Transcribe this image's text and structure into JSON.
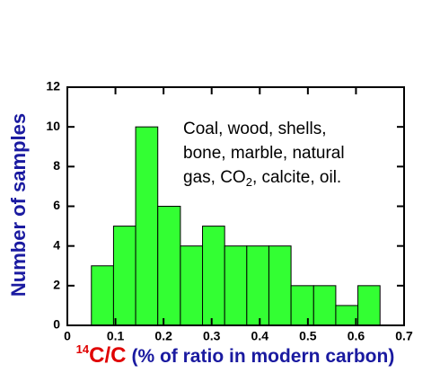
{
  "chart_data": {
    "type": "histogram",
    "ylabel": "Number of samples",
    "xlabel": {
      "superscript": "14",
      "main": "C/C",
      "rest": "(% of ratio in modern carbon)"
    },
    "annotation": {
      "lines": [
        "Coal, wood, shells,",
        "bone, marble, natural"
      ],
      "last_line": [
        "gas, CO",
        "2",
        ", calcite, oil."
      ]
    },
    "bins": [
      0.05,
      0.096,
      0.142,
      0.188,
      0.235,
      0.281,
      0.327,
      0.373,
      0.419,
      0.465,
      0.512,
      0.558,
      0.604,
      0.65
    ],
    "values": [
      3,
      5,
      10,
      6,
      4,
      5,
      4,
      4,
      4,
      2,
      2,
      1,
      2
    ],
    "color": "#33ff33",
    "xlim": [
      0,
      0.7
    ],
    "xticks": [
      0,
      0.1,
      0.2,
      0.3,
      0.4,
      0.5,
      0.6,
      0.7
    ],
    "ylim": [
      0,
      12
    ],
    "yticks": [
      0,
      2,
      4,
      6,
      8,
      10,
      12
    ]
  }
}
